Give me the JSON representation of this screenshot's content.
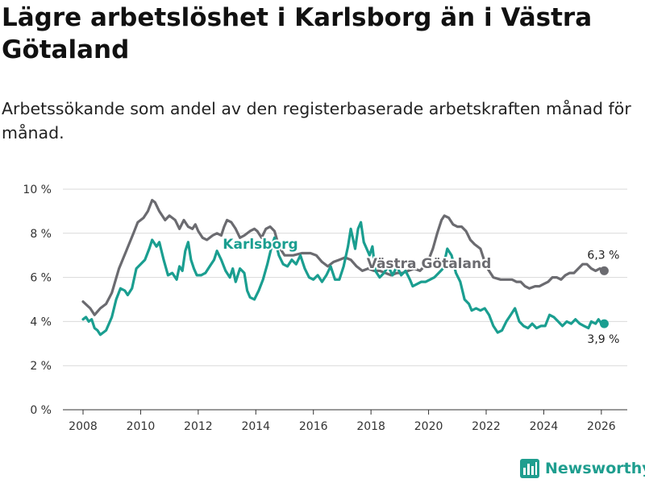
{
  "title": "Lägre arbetslöshet i Karlsborg än i Västra Götaland",
  "subtitle": "Arbetssökande som andel av den registerbaserade arbetskraften månad för månad.",
  "brand": {
    "name": "Newsworthy",
    "icon": "newsworthy-logo-icon"
  },
  "colors": {
    "karlsborg": "#1a9e90",
    "vastra_gotaland": "#6b6b70",
    "grid": "#d9d9d9",
    "axis": "#333333"
  },
  "chart_data": {
    "type": "line",
    "title": "Lägre arbetslöshet i Karlsborg än i Västra Götaland",
    "xlabel": "",
    "ylabel": "",
    "xlim": [
      2007.3,
      2026.9
    ],
    "ylim": [
      0,
      10
    ],
    "x_ticks": [
      2008,
      2010,
      2012,
      2014,
      2016,
      2018,
      2020,
      2022,
      2024,
      2026
    ],
    "y_ticks": [
      {
        "value": 0,
        "label": "0 %"
      },
      {
        "value": 2,
        "label": "2 %"
      },
      {
        "value": 4,
        "label": "4 %"
      },
      {
        "value": 6,
        "label": "6 %"
      },
      {
        "value": 8,
        "label": "8 %"
      },
      {
        "value": 10,
        "label": "10 %"
      }
    ],
    "grid": true,
    "series": [
      {
        "name": "Västra Götaland",
        "label": "Västra Götaland",
        "color": "#6b6b70",
        "end_label": "6,3 %",
        "points": [
          [
            2008.0,
            4.9
          ],
          [
            2008.25,
            4.6
          ],
          [
            2008.4,
            4.3
          ],
          [
            2008.6,
            4.6
          ],
          [
            2008.8,
            4.8
          ],
          [
            2009.0,
            5.3
          ],
          [
            2009.25,
            6.4
          ],
          [
            2009.5,
            7.2
          ],
          [
            2009.75,
            8.0
          ],
          [
            2009.9,
            8.5
          ],
          [
            2010.1,
            8.7
          ],
          [
            2010.25,
            9.0
          ],
          [
            2010.4,
            9.5
          ],
          [
            2010.5,
            9.4
          ],
          [
            2010.65,
            9.0
          ],
          [
            2010.85,
            8.6
          ],
          [
            2011.0,
            8.8
          ],
          [
            2011.2,
            8.6
          ],
          [
            2011.35,
            8.2
          ],
          [
            2011.5,
            8.6
          ],
          [
            2011.65,
            8.3
          ],
          [
            2011.8,
            8.2
          ],
          [
            2011.9,
            8.4
          ],
          [
            2012.0,
            8.1
          ],
          [
            2012.15,
            7.8
          ],
          [
            2012.3,
            7.7
          ],
          [
            2012.5,
            7.9
          ],
          [
            2012.65,
            8.0
          ],
          [
            2012.8,
            7.9
          ],
          [
            2012.9,
            8.3
          ],
          [
            2013.0,
            8.6
          ],
          [
            2013.15,
            8.5
          ],
          [
            2013.3,
            8.2
          ],
          [
            2013.45,
            7.8
          ],
          [
            2013.6,
            7.9
          ],
          [
            2013.8,
            8.1
          ],
          [
            2013.95,
            8.2
          ],
          [
            2014.05,
            8.1
          ],
          [
            2014.2,
            7.8
          ],
          [
            2014.35,
            8.2
          ],
          [
            2014.5,
            8.3
          ],
          [
            2014.65,
            8.1
          ],
          [
            2014.8,
            7.4
          ],
          [
            2015.0,
            7.0
          ],
          [
            2015.3,
            7.0
          ],
          [
            2015.6,
            7.1
          ],
          [
            2015.9,
            7.1
          ],
          [
            2016.1,
            7.0
          ],
          [
            2016.3,
            6.7
          ],
          [
            2016.5,
            6.5
          ],
          [
            2016.7,
            6.7
          ],
          [
            2016.9,
            6.8
          ],
          [
            2017.1,
            6.9
          ],
          [
            2017.3,
            6.8
          ],
          [
            2017.5,
            6.5
          ],
          [
            2017.7,
            6.3
          ],
          [
            2017.9,
            6.4
          ],
          [
            2018.1,
            6.3
          ],
          [
            2018.3,
            6.3
          ],
          [
            2018.5,
            6.2
          ],
          [
            2018.7,
            6.1
          ],
          [
            2018.9,
            6.2
          ],
          [
            2019.1,
            6.2
          ],
          [
            2019.3,
            6.3
          ],
          [
            2019.5,
            6.4
          ],
          [
            2019.7,
            6.3
          ],
          [
            2019.85,
            6.5
          ],
          [
            2020.0,
            6.8
          ],
          [
            2020.15,
            7.3
          ],
          [
            2020.3,
            8.0
          ],
          [
            2020.45,
            8.6
          ],
          [
            2020.55,
            8.8
          ],
          [
            2020.7,
            8.7
          ],
          [
            2020.85,
            8.4
          ],
          [
            2021.0,
            8.3
          ],
          [
            2021.15,
            8.3
          ],
          [
            2021.3,
            8.1
          ],
          [
            2021.45,
            7.7
          ],
          [
            2021.6,
            7.5
          ],
          [
            2021.8,
            7.3
          ],
          [
            2022.0,
            6.5
          ],
          [
            2022.25,
            6.0
          ],
          [
            2022.5,
            5.9
          ],
          [
            2022.75,
            5.9
          ],
          [
            2022.9,
            5.9
          ],
          [
            2023.05,
            5.8
          ],
          [
            2023.2,
            5.8
          ],
          [
            2023.35,
            5.6
          ],
          [
            2023.5,
            5.5
          ],
          [
            2023.7,
            5.6
          ],
          [
            2023.85,
            5.6
          ],
          [
            2024.0,
            5.7
          ],
          [
            2024.15,
            5.8
          ],
          [
            2024.3,
            6.0
          ],
          [
            2024.45,
            6.0
          ],
          [
            2024.6,
            5.9
          ],
          [
            2024.75,
            6.1
          ],
          [
            2024.9,
            6.2
          ],
          [
            2025.05,
            6.2
          ],
          [
            2025.2,
            6.4
          ],
          [
            2025.35,
            6.6
          ],
          [
            2025.5,
            6.6
          ],
          [
            2025.65,
            6.4
          ],
          [
            2025.8,
            6.3
          ],
          [
            2025.95,
            6.4
          ],
          [
            2026.1,
            6.3
          ]
        ]
      },
      {
        "name": "Karlsborg",
        "label": "Karlsborg",
        "color": "#1a9e90",
        "end_label": "3,9 %",
        "points": [
          [
            2008.0,
            4.1
          ],
          [
            2008.1,
            4.2
          ],
          [
            2008.2,
            4.0
          ],
          [
            2008.3,
            4.1
          ],
          [
            2008.4,
            3.7
          ],
          [
            2008.5,
            3.6
          ],
          [
            2008.6,
            3.4
          ],
          [
            2008.8,
            3.6
          ],
          [
            2009.0,
            4.2
          ],
          [
            2009.15,
            5.0
          ],
          [
            2009.3,
            5.5
          ],
          [
            2009.45,
            5.4
          ],
          [
            2009.55,
            5.2
          ],
          [
            2009.7,
            5.5
          ],
          [
            2009.85,
            6.4
          ],
          [
            2010.0,
            6.6
          ],
          [
            2010.15,
            6.8
          ],
          [
            2010.3,
            7.3
          ],
          [
            2010.4,
            7.7
          ],
          [
            2010.55,
            7.4
          ],
          [
            2010.65,
            7.6
          ],
          [
            2010.8,
            6.8
          ],
          [
            2010.95,
            6.1
          ],
          [
            2011.1,
            6.2
          ],
          [
            2011.25,
            5.9
          ],
          [
            2011.35,
            6.5
          ],
          [
            2011.45,
            6.3
          ],
          [
            2011.55,
            7.2
          ],
          [
            2011.65,
            7.6
          ],
          [
            2011.75,
            6.8
          ],
          [
            2011.85,
            6.4
          ],
          [
            2011.95,
            6.1
          ],
          [
            2012.1,
            6.1
          ],
          [
            2012.25,
            6.2
          ],
          [
            2012.4,
            6.5
          ],
          [
            2012.55,
            6.8
          ],
          [
            2012.65,
            7.2
          ],
          [
            2012.8,
            6.8
          ],
          [
            2012.95,
            6.3
          ],
          [
            2013.1,
            6.0
          ],
          [
            2013.2,
            6.4
          ],
          [
            2013.3,
            5.8
          ],
          [
            2013.45,
            6.4
          ],
          [
            2013.6,
            6.2
          ],
          [
            2013.7,
            5.4
          ],
          [
            2013.8,
            5.1
          ],
          [
            2013.95,
            5.0
          ],
          [
            2014.1,
            5.4
          ],
          [
            2014.25,
            5.9
          ],
          [
            2014.4,
            6.6
          ],
          [
            2014.55,
            7.4
          ],
          [
            2014.65,
            7.8
          ],
          [
            2014.8,
            7.0
          ],
          [
            2014.95,
            6.6
          ],
          [
            2015.1,
            6.5
          ],
          [
            2015.25,
            6.8
          ],
          [
            2015.4,
            6.6
          ],
          [
            2015.55,
            7.0
          ],
          [
            2015.7,
            6.4
          ],
          [
            2015.85,
            6.0
          ],
          [
            2016.0,
            5.9
          ],
          [
            2016.15,
            6.1
          ],
          [
            2016.3,
            5.8
          ],
          [
            2016.45,
            6.1
          ],
          [
            2016.6,
            6.5
          ],
          [
            2016.75,
            5.9
          ],
          [
            2016.9,
            5.9
          ],
          [
            2017.05,
            6.5
          ],
          [
            2017.2,
            7.4
          ],
          [
            2017.3,
            8.2
          ],
          [
            2017.45,
            7.3
          ],
          [
            2017.55,
            8.2
          ],
          [
            2017.65,
            8.5
          ],
          [
            2017.75,
            7.6
          ],
          [
            2017.85,
            7.3
          ],
          [
            2017.95,
            7.0
          ],
          [
            2018.05,
            7.4
          ],
          [
            2018.15,
            6.3
          ],
          [
            2018.3,
            6.0
          ],
          [
            2018.45,
            6.2
          ],
          [
            2018.6,
            6.5
          ],
          [
            2018.75,
            6.1
          ],
          [
            2018.9,
            6.5
          ],
          [
            2019.05,
            6.1
          ],
          [
            2019.2,
            6.3
          ],
          [
            2019.35,
            5.9
          ],
          [
            2019.45,
            5.6
          ],
          [
            2019.6,
            5.7
          ],
          [
            2019.75,
            5.8
          ],
          [
            2019.9,
            5.8
          ],
          [
            2020.05,
            5.9
          ],
          [
            2020.2,
            6.0
          ],
          [
            2020.35,
            6.2
          ],
          [
            2020.5,
            6.4
          ],
          [
            2020.65,
            7.3
          ],
          [
            2020.8,
            7.0
          ],
          [
            2020.95,
            6.2
          ],
          [
            2021.1,
            5.8
          ],
          [
            2021.25,
            5.0
          ],
          [
            2021.4,
            4.8
          ],
          [
            2021.5,
            4.5
          ],
          [
            2021.65,
            4.6
          ],
          [
            2021.8,
            4.5
          ],
          [
            2021.95,
            4.6
          ],
          [
            2022.1,
            4.3
          ],
          [
            2022.25,
            3.8
          ],
          [
            2022.4,
            3.5
          ],
          [
            2022.55,
            3.6
          ],
          [
            2022.7,
            4.0
          ],
          [
            2022.85,
            4.3
          ],
          [
            2023.0,
            4.6
          ],
          [
            2023.15,
            4.0
          ],
          [
            2023.3,
            3.8
          ],
          [
            2023.45,
            3.7
          ],
          [
            2023.6,
            3.9
          ],
          [
            2023.75,
            3.7
          ],
          [
            2023.9,
            3.8
          ],
          [
            2024.05,
            3.8
          ],
          [
            2024.2,
            4.3
          ],
          [
            2024.35,
            4.2
          ],
          [
            2024.5,
            4.0
          ],
          [
            2024.65,
            3.8
          ],
          [
            2024.8,
            4.0
          ],
          [
            2024.95,
            3.9
          ],
          [
            2025.1,
            4.1
          ],
          [
            2025.25,
            3.9
          ],
          [
            2025.4,
            3.8
          ],
          [
            2025.55,
            3.7
          ],
          [
            2025.65,
            4.0
          ],
          [
            2025.8,
            3.9
          ],
          [
            2025.9,
            4.1
          ],
          [
            2026.0,
            3.9
          ],
          [
            2026.1,
            3.9
          ]
        ]
      }
    ]
  }
}
